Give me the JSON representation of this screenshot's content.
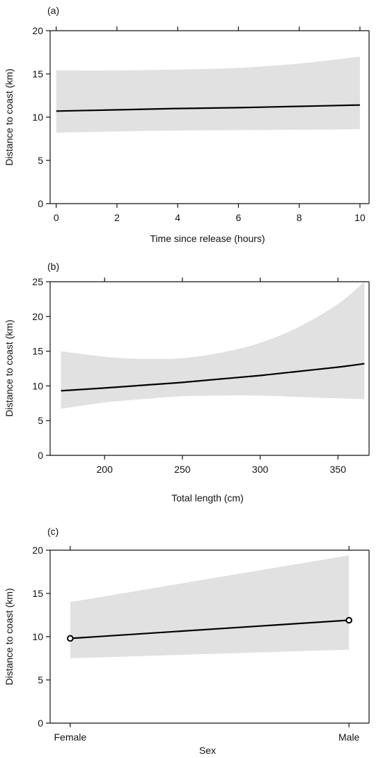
{
  "chart_data": [
    {
      "type": "line",
      "panel_label": "(a)",
      "xlabel": "Time since release (hours)",
      "ylabel": "Distance to coast (km)",
      "xlim": [
        -0.2,
        10.3
      ],
      "ylim": [
        0,
        20
      ],
      "xticks": [
        0,
        2,
        4,
        6,
        8,
        10
      ],
      "yticks": [
        0,
        5,
        10,
        15,
        20
      ],
      "grid": false,
      "series": [
        {
          "x": [
            0,
            2,
            4,
            6,
            8,
            10
          ],
          "y": [
            10.7,
            10.85,
            11.0,
            11.1,
            11.25,
            11.4
          ],
          "lower": [
            8.2,
            8.35,
            8.45,
            8.5,
            8.55,
            8.6
          ],
          "upper": [
            15.4,
            15.4,
            15.5,
            15.7,
            16.2,
            17.0
          ]
        }
      ]
    },
    {
      "type": "line",
      "panel_label": "(b)",
      "xlabel": "Total length (cm)",
      "ylabel": "Distance to coast (km)",
      "xlim": [
        165,
        370
      ],
      "ylim": [
        0,
        25
      ],
      "xticks": [
        200,
        250,
        300,
        350
      ],
      "yticks": [
        0,
        5,
        10,
        15,
        20,
        25
      ],
      "grid": false,
      "series": [
        {
          "x": [
            172,
            200,
            225,
            250,
            275,
            300,
            325,
            350,
            367
          ],
          "y": [
            9.3,
            9.7,
            10.1,
            10.5,
            11.0,
            11.5,
            12.1,
            12.7,
            13.2
          ],
          "lower": [
            6.7,
            7.6,
            8.1,
            8.5,
            8.6,
            8.6,
            8.4,
            8.2,
            8.1
          ],
          "upper": [
            15.0,
            14.2,
            13.9,
            14.0,
            14.8,
            16.2,
            18.5,
            21.8,
            25.0
          ]
        }
      ]
    },
    {
      "type": "line",
      "panel_label": "(c)",
      "xlabel": "Sex",
      "ylabel": "Distance to coast (km)",
      "categories": [
        "Female",
        "Male"
      ],
      "ylim": [
        0,
        20
      ],
      "yticks": [
        0,
        5,
        10,
        15,
        20
      ],
      "grid": false,
      "series": [
        {
          "values": [
            9.8,
            11.9
          ],
          "lower": [
            7.5,
            8.5
          ],
          "upper": [
            14.0,
            19.4
          ]
        }
      ]
    }
  ]
}
